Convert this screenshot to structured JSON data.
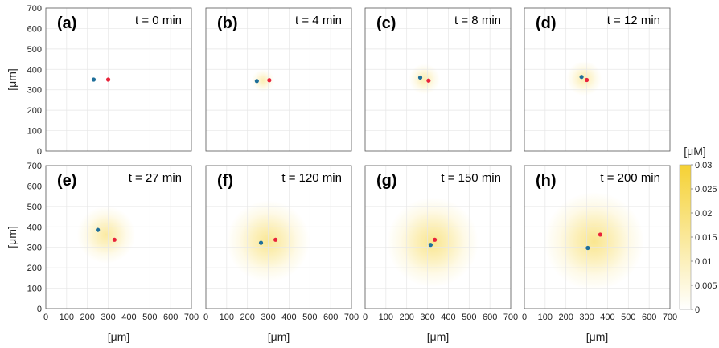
{
  "chart_data": {
    "type": "heatmap",
    "panels": [
      {
        "label": "(a)",
        "time": "t = 0 min",
        "spread": 0,
        "blue": {
          "x": 230,
          "y": 350
        },
        "red": {
          "x": 300,
          "y": 350
        }
      },
      {
        "label": "(b)",
        "time": "t = 4 min",
        "spread": 55,
        "blue": {
          "x": 245,
          "y": 343
        },
        "red": {
          "x": 305,
          "y": 347
        }
      },
      {
        "label": "(c)",
        "time": "t = 8 min",
        "spread": 75,
        "blue": {
          "x": 265,
          "y": 360
        },
        "red": {
          "x": 305,
          "y": 345
        }
      },
      {
        "label": "(d)",
        "time": "t = 12 min",
        "spread": 85,
        "blue": {
          "x": 275,
          "y": 363
        },
        "red": {
          "x": 300,
          "y": 348
        }
      },
      {
        "label": "(e)",
        "time": "t = 27 min",
        "spread": 140,
        "blue": {
          "x": 250,
          "y": 385
        },
        "red": {
          "x": 330,
          "y": 337
        }
      },
      {
        "label": "(f)",
        "time": "t = 120 min",
        "spread": 200,
        "blue": {
          "x": 265,
          "y": 322
        },
        "red": {
          "x": 335,
          "y": 337
        }
      },
      {
        "label": "(g)",
        "time": "t = 150 min",
        "spread": 220,
        "blue": {
          "x": 315,
          "y": 312
        },
        "red": {
          "x": 335,
          "y": 337
        }
      },
      {
        "label": "(h)",
        "time": "t = 200 min",
        "spread": 240,
        "blue": {
          "x": 305,
          "y": 297
        },
        "red": {
          "x": 365,
          "y": 362
        }
      }
    ],
    "x_ticks": [
      0,
      100,
      200,
      300,
      400,
      500,
      600,
      700
    ],
    "y_ticks": [
      0,
      100,
      200,
      300,
      400,
      500,
      600,
      700
    ],
    "xlim": [
      0,
      700
    ],
    "ylim": [
      0,
      700
    ],
    "xlabel": "[μm]",
    "ylabel": "[μm]",
    "grid": true,
    "colorbar": {
      "unit": "[μM]",
      "range": [
        0,
        0.03
      ],
      "ticks": [
        "0",
        "0.005",
        "0.01",
        "0.015",
        "0.02",
        "0.025",
        "0.03"
      ],
      "color_low": "#ffffff",
      "color_high": "#f5d133"
    },
    "marker_colors": {
      "blue": "#1f6f9a",
      "red": "#e8233a"
    }
  }
}
